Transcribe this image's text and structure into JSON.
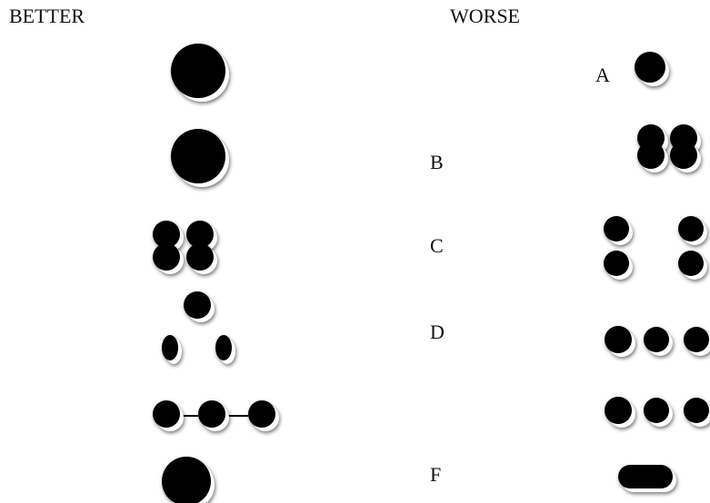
{
  "header": {
    "better": "BETTER",
    "worse": "WORSE"
  },
  "labels": [
    "A",
    "B",
    "C",
    "D",
    "F"
  ]
}
